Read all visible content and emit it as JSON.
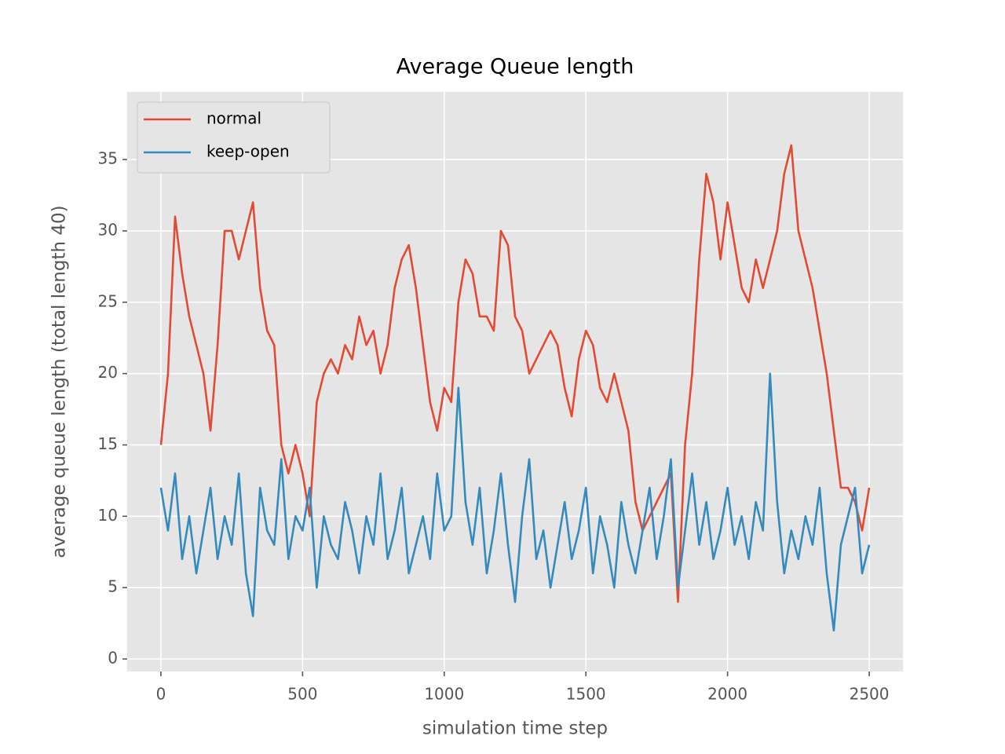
{
  "chart_data": {
    "type": "line",
    "title": "Average Queue length",
    "xlabel": "simulation time step",
    "ylabel": "average queue length (total length 40)",
    "x": [
      0,
      25,
      50,
      75,
      100,
      125,
      150,
      175,
      200,
      225,
      250,
      275,
      300,
      325,
      350,
      375,
      400,
      425,
      450,
      475,
      500,
      525,
      550,
      575,
      600,
      625,
      650,
      675,
      700,
      725,
      750,
      775,
      800,
      825,
      850,
      875,
      900,
      925,
      950,
      975,
      1000,
      1025,
      1050,
      1075,
      1100,
      1125,
      1150,
      1175,
      1200,
      1225,
      1250,
      1275,
      1300,
      1325,
      1350,
      1375,
      1400,
      1425,
      1450,
      1475,
      1500,
      1525,
      1550,
      1575,
      1600,
      1625,
      1650,
      1675,
      1700,
      1725,
      1750,
      1775,
      1800,
      1825,
      1850,
      1875,
      1900,
      1925,
      1950,
      1975,
      2000,
      2025,
      2050,
      2075,
      2100,
      2125,
      2150,
      2175,
      2200,
      2225,
      2250,
      2275,
      2300,
      2325,
      2350,
      2375,
      2400,
      2425,
      2450,
      2475,
      2500
    ],
    "series": [
      {
        "name": "normal",
        "color": "#E24A33",
        "values": [
          15,
          20,
          31,
          27,
          24,
          22,
          20,
          16,
          22,
          30,
          30,
          28,
          30,
          32,
          26,
          23,
          22,
          15,
          13,
          15,
          13,
          10,
          18,
          20,
          21,
          20,
          22,
          21,
          24,
          22,
          23,
          20,
          22,
          26,
          28,
          29,
          26,
          22,
          18,
          16,
          19,
          18,
          25,
          28,
          27,
          24,
          24,
          23,
          30,
          29,
          24,
          23,
          20,
          21,
          22,
          23,
          22,
          19,
          17,
          21,
          23,
          22,
          19,
          18,
          20,
          18,
          16,
          11,
          9,
          10,
          11,
          12,
          13,
          4,
          15,
          20,
          28,
          34,
          32,
          28,
          32,
          29,
          26,
          25,
          28,
          26,
          28,
          30,
          34,
          36,
          30,
          28,
          26,
          23,
          20,
          16,
          12,
          12,
          11,
          9,
          12
        ]
      },
      {
        "name": "keep-open",
        "color": "#348ABD",
        "values": [
          12,
          9,
          13,
          7,
          10,
          6,
          9,
          12,
          7,
          10,
          8,
          13,
          6,
          3,
          12,
          9,
          8,
          14,
          7,
          10,
          9,
          12,
          5,
          10,
          8,
          7,
          11,
          9,
          6,
          10,
          8,
          13,
          7,
          9,
          12,
          6,
          8,
          10,
          7,
          13,
          9,
          10,
          19,
          11,
          8,
          12,
          6,
          9,
          13,
          8,
          4,
          10,
          14,
          7,
          9,
          5,
          8,
          11,
          7,
          9,
          12,
          6,
          10,
          8,
          5,
          11,
          8,
          6,
          9,
          12,
          7,
          10,
          14,
          5,
          9,
          13,
          8,
          11,
          7,
          9,
          12,
          8,
          10,
          7,
          11,
          9,
          20,
          11,
          6,
          9,
          7,
          10,
          8,
          12,
          6,
          2,
          8,
          10,
          12,
          6,
          8
        ]
      }
    ],
    "xlim": [
      -119,
      2619
    ],
    "ylim": [
      -0.88,
      39.74
    ],
    "xticks": [
      0,
      500,
      1000,
      1500,
      2000,
      2500
    ],
    "yticks": [
      0,
      5,
      10,
      15,
      20,
      25,
      30,
      35
    ],
    "grid": true,
    "legend": "upper left"
  }
}
